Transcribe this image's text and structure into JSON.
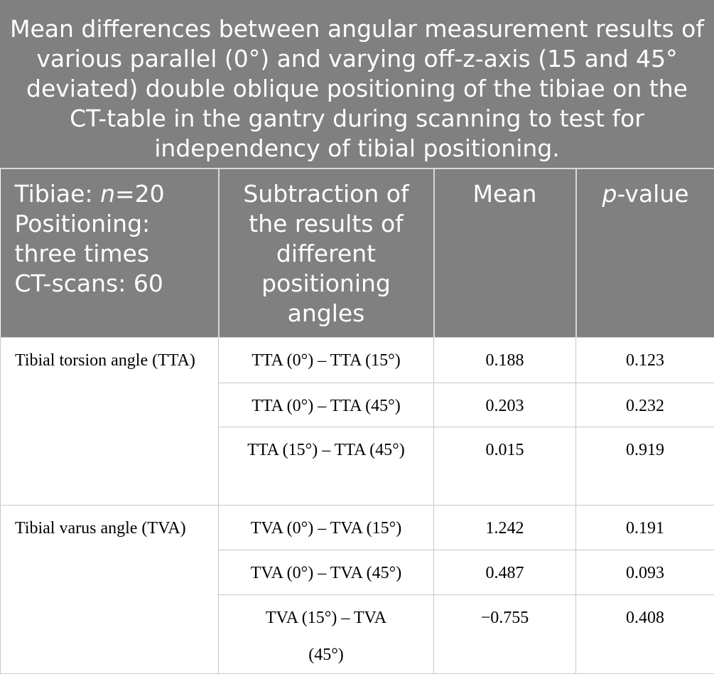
{
  "title": "Mean differences between angular measurement results of various parallel (0°) and varying off-z-axis (15 and 45° deviated) double oblique positioning of the tibiae on the CT-table in the gantry during scanning to test for independency of tibial positioning.",
  "header": [
    [
      [
        {
          "text": "Tibiae: "
        },
        {
          "text": "n",
          "italic": true
        },
        {
          "text": "=20"
        }
      ],
      [
        {
          "text": "Positioning:"
        }
      ],
      [
        {
          "text": "three times"
        }
      ],
      [
        {
          "text": "CT-scans: 60"
        }
      ]
    ],
    [
      [
        {
          "text": "Subtraction of"
        }
      ],
      [
        {
          "text": "the results of"
        }
      ],
      [
        {
          "text": "different"
        }
      ],
      [
        {
          "text": "positioning"
        }
      ],
      [
        {
          "text": "angles"
        }
      ]
    ],
    [
      [
        {
          "text": "Mean"
        }
      ]
    ],
    [
      [
        {
          "text": "p",
          "italic": true
        },
        {
          "text": "-value"
        }
      ]
    ]
  ],
  "groups": [
    {
      "label": "Tibial torsion angle (TTA)",
      "rows": [
        [
          "TTA (0°) – TTA (15°)",
          "0.188",
          "0.123"
        ],
        [
          "TTA (0°) – TTA (45°)",
          "0.203",
          "0.232"
        ],
        [
          "TTA (15°) – TTA (45°)",
          "0.015",
          "0.919"
        ]
      ]
    },
    {
      "label": "Tibial varus angle (TVA)",
      "rows": [
        [
          "TVA (0°) – TVA (15°)",
          "1.242",
          "0.191"
        ],
        [
          "TVA (0°) – TVA (45°)",
          "0.487",
          "0.093"
        ],
        [
          "TVA (15°) – TVA (45°)",
          "−0.755",
          "0.408"
        ]
      ]
    }
  ]
}
